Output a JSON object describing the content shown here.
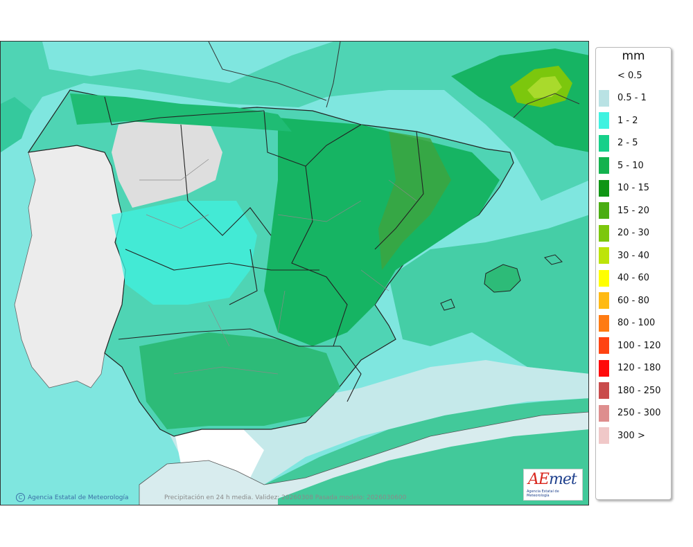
{
  "map": {
    "credit": "Agencia Estatal de Meteorología",
    "caption": "Precipitación en 24 h media. Validez: 20260308 Pasada modelo: 2026030600",
    "logo": {
      "word_a": "AE",
      "word_b": "met",
      "sub": "Agencia Estatal de Meteorología"
    }
  },
  "legend": {
    "unit": "mm",
    "items": [
      {
        "label": "< 0.5",
        "color": "#ffffff"
      },
      {
        "label": "0.5 - 1",
        "color": "#b9e2e4"
      },
      {
        "label": "1 - 2",
        "color": "#3ff2e0"
      },
      {
        "label": "2 - 5",
        "color": "#16d08a"
      },
      {
        "label": "5 - 10",
        "color": "#13b24e"
      },
      {
        "label": "10 - 15",
        "color": "#0f9514"
      },
      {
        "label": "15 - 20",
        "color": "#4aad11"
      },
      {
        "label": "20 - 30",
        "color": "#7cc70d"
      },
      {
        "label": "30 - 40",
        "color": "#bde40a"
      },
      {
        "label": "40 - 60",
        "color": "#ffff00"
      },
      {
        "label": "60 - 80",
        "color": "#ffba13"
      },
      {
        "label": "80 - 100",
        "color": "#ff7b12"
      },
      {
        "label": "100 - 120",
        "color": "#ff4312"
      },
      {
        "label": "120 - 180",
        "color": "#ff0a0a"
      },
      {
        "label": "180 - 250",
        "color": "#c94b4b"
      },
      {
        "label": "250 - 300",
        "color": "#de8e8e"
      },
      {
        "label": "300 >",
        "color": "#f0c8c8"
      }
    ]
  }
}
